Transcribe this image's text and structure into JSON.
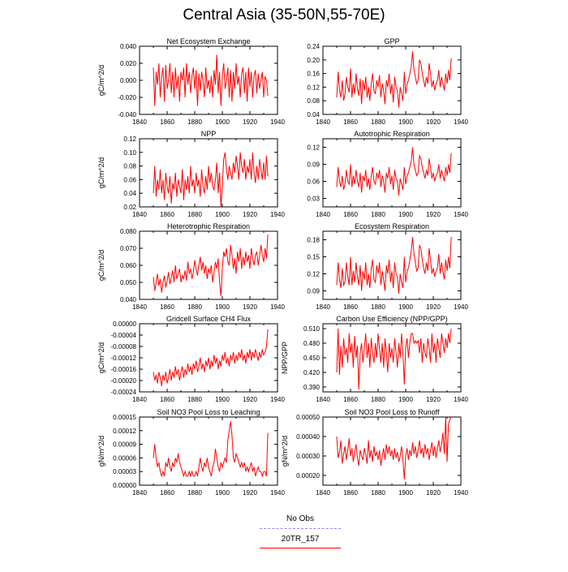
{
  "title": "Central Asia (35-50N,55-70E)",
  "line_color": "#ff0000",
  "legend": [
    {
      "label": "No Obs",
      "color": "#8888ff",
      "dash": true
    },
    {
      "label": "20TR_157",
      "color": "#ff0000",
      "dash": false
    }
  ],
  "chart_data": [
    {
      "type": "line",
      "title": "Net Ecosystem Exchange",
      "xlabel": "",
      "ylabel": "gC/m^2/d",
      "xlim": [
        1840,
        1940
      ],
      "xticks": [
        1840,
        1860,
        1880,
        1900,
        1920,
        1940
      ],
      "ylim": [
        -0.04,
        0.04
      ],
      "yticks": [
        -0.04,
        -0.02,
        0.0,
        0.02,
        0.04
      ],
      "yticklabels": [
        "-0.040",
        "-0.020",
        "0.000",
        "0.020",
        "0.040"
      ],
      "x_start": 1850,
      "x_step": 1,
      "values": [
        0.015,
        -0.03,
        0.01,
        -0.005,
        0.02,
        -0.02,
        0.005,
        0.015,
        -0.025,
        0.018,
        -0.01,
        0.0,
        0.02,
        -0.015,
        0.01,
        -0.02,
        0.015,
        -0.01,
        0.005,
        -0.025,
        0.01,
        0.0,
        0.015,
        -0.02,
        0.02,
        -0.005,
        0.01,
        -0.015,
        0.005,
        0.015,
        -0.01,
        0.012,
        -0.03,
        0.008,
        -0.012,
        0.01,
        0.0,
        -0.02,
        0.015,
        -0.01,
        0.0,
        -0.015,
        0.005,
        -0.02,
        0.012,
        -0.005,
        0.03,
        -0.015,
        0.01,
        -0.03,
        0.005,
        0.02,
        -0.01,
        0.0,
        0.015,
        -0.02,
        0.012,
        -0.025,
        0.01,
        -0.01,
        0.02,
        -0.005,
        0.005,
        -0.02,
        0.008,
        0.015,
        -0.015,
        0.01,
        -0.025,
        0.015,
        -0.008,
        0.01,
        -0.02,
        0.005,
        0.012,
        -0.015,
        0.008,
        -0.01,
        0.0,
        0.01,
        -0.02,
        0.005,
        0.0,
        -0.018
      ]
    },
    {
      "type": "line",
      "title": "GPP",
      "xlabel": "",
      "ylabel": "",
      "xlim": [
        1840,
        1940
      ],
      "xticks": [
        1840,
        1860,
        1880,
        1900,
        1920,
        1940
      ],
      "ylim": [
        0.04,
        0.24
      ],
      "yticks": [
        0.04,
        0.08,
        0.12,
        0.16,
        0.2,
        0.24
      ],
      "yticklabels": [
        "0.04",
        "0.08",
        "0.12",
        "0.16",
        "0.20",
        "0.24"
      ],
      "x_start": 1850,
      "x_step": 1,
      "values": [
        0.09,
        0.165,
        0.11,
        0.09,
        0.14,
        0.08,
        0.1,
        0.15,
        0.12,
        0.105,
        0.175,
        0.09,
        0.13,
        0.1,
        0.16,
        0.115,
        0.095,
        0.145,
        0.07,
        0.14,
        0.11,
        0.15,
        0.09,
        0.12,
        0.08,
        0.13,
        0.16,
        0.11,
        0.1,
        0.14,
        0.12,
        0.155,
        0.09,
        0.13,
        0.11,
        0.07,
        0.14,
        0.12,
        0.16,
        0.1,
        0.13,
        0.075,
        0.15,
        0.12,
        0.11,
        0.06,
        0.12,
        0.1,
        0.08,
        0.165,
        0.1,
        0.13,
        0.14,
        0.16,
        0.18,
        0.225,
        0.17,
        0.15,
        0.13,
        0.14,
        0.2,
        0.19,
        0.16,
        0.14,
        0.12,
        0.15,
        0.13,
        0.19,
        0.16,
        0.12,
        0.14,
        0.11,
        0.13,
        0.14,
        0.17,
        0.12,
        0.15,
        0.13,
        0.11,
        0.16,
        0.13,
        0.17,
        0.14,
        0.205
      ]
    },
    {
      "type": "line",
      "title": "NPP",
      "xlabel": "",
      "ylabel": "gC/m^2/d",
      "xlim": [
        1840,
        1940
      ],
      "xticks": [
        1840,
        1860,
        1880,
        1900,
        1920,
        1940
      ],
      "ylim": [
        0.02,
        0.12
      ],
      "yticks": [
        0.02,
        0.04,
        0.06,
        0.08,
        0.1,
        0.12
      ],
      "yticklabels": [
        "0.02",
        "0.04",
        "0.06",
        "0.08",
        "0.10",
        "0.12"
      ],
      "x_start": 1850,
      "x_step": 1,
      "values": [
        0.04,
        0.08,
        0.035,
        0.06,
        0.045,
        0.075,
        0.04,
        0.06,
        0.03,
        0.07,
        0.05,
        0.04,
        0.065,
        0.025,
        0.055,
        0.045,
        0.07,
        0.035,
        0.06,
        0.05,
        0.04,
        0.075,
        0.03,
        0.06,
        0.045,
        0.065,
        0.04,
        0.08,
        0.05,
        0.06,
        0.04,
        0.07,
        0.05,
        0.06,
        0.035,
        0.075,
        0.05,
        0.04,
        0.065,
        0.045,
        0.08,
        0.055,
        0.07,
        0.05,
        0.045,
        0.06,
        0.085,
        0.04,
        0.07,
        0.02,
        0.05,
        0.09,
        0.1,
        0.075,
        0.06,
        0.08,
        0.07,
        0.06,
        0.085,
        0.07,
        0.095,
        0.08,
        0.06,
        0.1,
        0.08,
        0.07,
        0.09,
        0.06,
        0.08,
        0.07,
        0.09,
        0.06,
        0.1,
        0.07,
        0.055,
        0.08,
        0.06,
        0.09,
        0.075,
        0.06,
        0.085,
        0.06,
        0.095,
        0.065
      ]
    },
    {
      "type": "line",
      "title": "Autotrophic Respiration",
      "xlabel": "",
      "ylabel": "",
      "xlim": [
        1840,
        1940
      ],
      "xticks": [
        1840,
        1860,
        1880,
        1900,
        1920,
        1940
      ],
      "ylim": [
        0.015,
        0.135
      ],
      "yticks": [
        0.03,
        0.06,
        0.09,
        0.12
      ],
      "yticklabels": [
        "0.03",
        "0.06",
        "0.09",
        "0.12"
      ],
      "x_start": 1850,
      "x_step": 1,
      "values": [
        0.05,
        0.085,
        0.06,
        0.05,
        0.07,
        0.045,
        0.055,
        0.08,
        0.06,
        0.055,
        0.09,
        0.05,
        0.07,
        0.055,
        0.08,
        0.06,
        0.05,
        0.075,
        0.04,
        0.07,
        0.06,
        0.08,
        0.05,
        0.065,
        0.045,
        0.07,
        0.085,
        0.06,
        0.055,
        0.075,
        0.065,
        0.08,
        0.05,
        0.07,
        0.06,
        0.04,
        0.075,
        0.065,
        0.085,
        0.055,
        0.07,
        0.045,
        0.08,
        0.065,
        0.06,
        0.035,
        0.065,
        0.055,
        0.045,
        0.085,
        0.055,
        0.07,
        0.075,
        0.085,
        0.095,
        0.12,
        0.09,
        0.08,
        0.07,
        0.075,
        0.105,
        0.1,
        0.085,
        0.075,
        0.065,
        0.08,
        0.07,
        0.1,
        0.085,
        0.065,
        0.075,
        0.06,
        0.07,
        0.075,
        0.09,
        0.065,
        0.08,
        0.07,
        0.06,
        0.085,
        0.07,
        0.09,
        0.075,
        0.11
      ]
    },
    {
      "type": "line",
      "title": "Heterotrophic Respiration",
      "xlabel": "",
      "ylabel": "gC/m^2/d",
      "xlim": [
        1840,
        1940
      ],
      "xticks": [
        1840,
        1860,
        1880,
        1900,
        1920,
        1940
      ],
      "ylim": [
        0.04,
        0.08
      ],
      "yticks": [
        0.04,
        0.05,
        0.06,
        0.07,
        0.08
      ],
      "yticklabels": [
        "0.040",
        "0.050",
        "0.060",
        "0.070",
        "0.080"
      ],
      "x_start": 1850,
      "x_step": 1,
      "values": [
        0.053,
        0.045,
        0.05,
        0.055,
        0.048,
        0.052,
        0.044,
        0.05,
        0.054,
        0.047,
        0.051,
        0.056,
        0.049,
        0.053,
        0.057,
        0.05,
        0.06,
        0.052,
        0.055,
        0.058,
        0.05,
        0.054,
        0.052,
        0.057,
        0.051,
        0.062,
        0.055,
        0.058,
        0.052,
        0.056,
        0.063,
        0.058,
        0.054,
        0.06,
        0.065,
        0.057,
        0.062,
        0.055,
        0.06,
        0.052,
        0.058,
        0.055,
        0.06,
        0.05,
        0.056,
        0.062,
        0.058,
        0.064,
        0.05,
        0.042,
        0.058,
        0.068,
        0.065,
        0.07,
        0.062,
        0.06,
        0.072,
        0.066,
        0.058,
        0.064,
        0.055,
        0.068,
        0.062,
        0.07,
        0.058,
        0.065,
        0.06,
        0.068,
        0.062,
        0.066,
        0.058,
        0.07,
        0.064,
        0.06,
        0.066,
        0.068,
        0.06,
        0.065,
        0.072,
        0.066,
        0.062,
        0.07,
        0.064,
        0.078
      ]
    },
    {
      "type": "line",
      "title": "Ecosystem Respiration",
      "xlabel": "",
      "ylabel": "",
      "xlim": [
        1840,
        1940
      ],
      "xticks": [
        1840,
        1860,
        1880,
        1900,
        1920,
        1940
      ],
      "ylim": [
        0.075,
        0.195
      ],
      "yticks": [
        0.09,
        0.12,
        0.15,
        0.18
      ],
      "yticklabels": [
        "0.09",
        "0.12",
        "0.15",
        "0.18"
      ],
      "x_start": 1850,
      "x_step": 1,
      "values": [
        0.1,
        0.14,
        0.11,
        0.095,
        0.13,
        0.1,
        0.105,
        0.14,
        0.115,
        0.1,
        0.15,
        0.1,
        0.125,
        0.105,
        0.14,
        0.115,
        0.1,
        0.135,
        0.09,
        0.125,
        0.11,
        0.14,
        0.1,
        0.12,
        0.095,
        0.13,
        0.145,
        0.11,
        0.105,
        0.135,
        0.12,
        0.14,
        0.1,
        0.125,
        0.11,
        0.09,
        0.135,
        0.12,
        0.145,
        0.105,
        0.125,
        0.095,
        0.14,
        0.12,
        0.115,
        0.085,
        0.12,
        0.105,
        0.095,
        0.15,
        0.105,
        0.125,
        0.13,
        0.145,
        0.16,
        0.185,
        0.155,
        0.14,
        0.125,
        0.13,
        0.17,
        0.165,
        0.145,
        0.13,
        0.12,
        0.14,
        0.125,
        0.165,
        0.145,
        0.12,
        0.13,
        0.115,
        0.125,
        0.13,
        0.155,
        0.12,
        0.14,
        0.125,
        0.11,
        0.145,
        0.125,
        0.15,
        0.13,
        0.185
      ]
    },
    {
      "type": "line",
      "title": "Gridcell Surface CH4 Flux",
      "xlabel": "",
      "ylabel": "gC/m^2/d",
      "xlim": [
        1840,
        1940
      ],
      "xticks": [
        1840,
        1860,
        1880,
        1900,
        1920,
        1940
      ],
      "ylim": [
        -0.00024,
        0.0
      ],
      "yticks": [
        -0.00024,
        -0.0002,
        -0.00016,
        -0.00012,
        -8e-05,
        -4e-05,
        0.0
      ],
      "yticklabels": [
        "-0.00024",
        "-0.00020",
        "-0.00016",
        "-0.00012",
        "-0.00008",
        "-0.00004",
        "0.00000"
      ],
      "x_start": 1850,
      "x_step": 1,
      "values": [
        -0.00017,
        -0.0002,
        -0.00018,
        -0.00021,
        -0.00017,
        -0.00019,
        -0.00022,
        -0.00018,
        -0.0002,
        -0.00017,
        -0.00021,
        -0.00019,
        -0.00016,
        -0.0002,
        -0.00017,
        -0.00019,
        -0.00015,
        -0.00018,
        -0.00016,
        -0.0002,
        -0.00017,
        -0.00015,
        -0.00019,
        -0.00016,
        -0.00018,
        -0.00014,
        -0.00017,
        -0.00015,
        -0.00018,
        -0.00014,
        -0.00016,
        -0.00013,
        -0.00017,
        -0.00015,
        -0.00012,
        -0.00016,
        -0.00014,
        -0.00017,
        -0.00013,
        -0.00015,
        -0.00012,
        -0.00016,
        -0.00013,
        -0.00015,
        -0.00011,
        -0.00014,
        -0.00012,
        -0.00016,
        -0.00013,
        -0.00015,
        -0.00011,
        -0.00013,
        -0.0001,
        -0.00014,
        -0.00012,
        -0.00015,
        -0.00011,
        -0.00013,
        -0.0001,
        -0.00014,
        -0.00011,
        -0.00013,
        -0.0001,
        -0.00012,
        -9e-05,
        -0.00013,
        -0.00011,
        -0.00014,
        -0.0001,
        -0.00012,
        -9e-05,
        -0.00013,
        -0.0001,
        -0.00012,
        -9e-05,
        -0.00011,
        -0.00013,
        -0.0001,
        -0.00012,
        -9e-05,
        -0.00011,
        -0.0001,
        -8e-05,
        -2e-05
      ]
    },
    {
      "type": "line",
      "title": "Carbon Use Efficiency (NPP/GPP)",
      "xlabel": "",
      "ylabel": "NPP/GPP",
      "xlim": [
        1840,
        1940
      ],
      "xticks": [
        1840,
        1860,
        1880,
        1900,
        1920,
        1940
      ],
      "ylim": [
        0.38,
        0.52
      ],
      "yticks": [
        0.39,
        0.42,
        0.45,
        0.48,
        0.51
      ],
      "yticklabels": [
        "0.390",
        "0.420",
        "0.450",
        "0.480",
        "0.510"
      ],
      "x_start": 1850,
      "x_step": 1,
      "values": [
        0.42,
        0.51,
        0.415,
        0.475,
        0.43,
        0.49,
        0.455,
        0.47,
        0.44,
        0.5,
        0.46,
        0.48,
        0.43,
        0.495,
        0.45,
        0.475,
        0.385,
        0.46,
        0.48,
        0.44,
        0.47,
        0.5,
        0.45,
        0.48,
        0.43,
        0.49,
        0.46,
        0.44,
        0.48,
        0.45,
        0.5,
        0.47,
        0.44,
        0.48,
        0.43,
        0.49,
        0.46,
        0.42,
        0.48,
        0.45,
        0.47,
        0.44,
        0.49,
        0.46,
        0.43,
        0.48,
        0.45,
        0.5,
        0.46,
        0.395,
        0.47,
        0.49,
        0.45,
        0.48,
        0.5,
        0.5,
        0.48,
        0.485,
        0.48,
        0.485,
        0.46,
        0.49,
        0.44,
        0.48,
        0.46,
        0.45,
        0.49,
        0.47,
        0.44,
        0.5,
        0.46,
        0.48,
        0.44,
        0.49,
        0.47,
        0.45,
        0.5,
        0.48,
        0.46,
        0.49,
        0.47,
        0.5,
        0.48,
        0.51
      ]
    },
    {
      "type": "line",
      "title": "Soil NO3 Pool Loss to Leaching",
      "xlabel": "",
      "ylabel": "gN/m^2/d",
      "xlim": [
        1840,
        1940
      ],
      "xticks": [
        1840,
        1860,
        1880,
        1900,
        1920,
        1940
      ],
      "ylim": [
        0.0,
        0.00015
      ],
      "yticks": [
        0.0,
        3e-05,
        6e-05,
        9e-05,
        0.00012,
        0.00015
      ],
      "yticklabels": [
        "0.00000",
        "0.00003",
        "0.00006",
        "0.00009",
        "0.00012",
        "0.00015"
      ],
      "x_start": 1850,
      "x_step": 1,
      "values": [
        6e-05,
        9e-05,
        6e-05,
        4e-05,
        5e-05,
        3e-05,
        2e-05,
        3e-05,
        2e-05,
        5e-05,
        4e-05,
        6e-05,
        4e-05,
        3e-05,
        5e-05,
        4e-05,
        6e-05,
        5e-05,
        7e-05,
        5e-05,
        4e-05,
        3e-05,
        2e-05,
        3e-05,
        2e-05,
        2e-05,
        3e-05,
        2e-05,
        3e-05,
        2e-05,
        2e-05,
        3e-05,
        2e-05,
        4e-05,
        6e-05,
        4e-05,
        3e-05,
        5e-05,
        4e-05,
        6e-05,
        4e-05,
        3e-05,
        2e-05,
        4e-05,
        5e-05,
        8e-05,
        6e-05,
        4e-05,
        3e-05,
        5e-05,
        4e-05,
        5e-05,
        6e-05,
        5e-05,
        0.0001,
        0.00012,
        0.00014,
        0.00011,
        6e-05,
        5e-05,
        7e-05,
        6e-05,
        5e-05,
        4e-05,
        5e-05,
        4e-05,
        5e-05,
        3e-05,
        4e-05,
        3e-05,
        4e-05,
        5e-05,
        3e-05,
        4e-05,
        2e-05,
        3e-05,
        4e-05,
        3e-05,
        3e-05,
        2e-05,
        3e-05,
        3e-05,
        2e-05,
        0.000115
      ]
    },
    {
      "type": "line",
      "title": "Soil NO3 Pool Loss to Runoff",
      "xlabel": "",
      "ylabel": "gN/m^2/d",
      "xlim": [
        1840,
        1940
      ],
      "xticks": [
        1840,
        1860,
        1880,
        1900,
        1920,
        1940
      ],
      "ylim": [
        0.00015,
        0.0005
      ],
      "yticks": [
        0.0002,
        0.0003,
        0.0004,
        0.0005
      ],
      "yticklabels": [
        "0.00020",
        "0.00030",
        "0.00040",
        "0.00050"
      ],
      "x_start": 1850,
      "x_step": 1,
      "values": [
        0.0004,
        0.00029,
        0.00032,
        0.00038,
        0.00026,
        0.00031,
        0.00035,
        0.00028,
        0.00033,
        0.00039,
        0.0003,
        0.00034,
        0.00027,
        0.00032,
        0.00036,
        0.00029,
        0.00025,
        0.00033,
        0.0003,
        0.00028,
        0.00034,
        0.00031,
        0.00026,
        0.00038,
        0.00029,
        0.00033,
        0.00027,
        0.00035,
        0.0003,
        0.00032,
        0.00028,
        0.00033,
        0.00025,
        0.0003,
        0.00034,
        0.00028,
        0.00036,
        0.00031,
        0.00035,
        0.0003,
        0.00033,
        0.00028,
        0.00034,
        0.00029,
        0.00032,
        0.00027,
        0.0003,
        0.00035,
        0.00028,
        0.00018,
        0.0003,
        0.00034,
        0.00028,
        0.00033,
        0.0003,
        0.00037,
        0.00031,
        0.00035,
        0.00029,
        0.00033,
        0.00038,
        0.00031,
        0.00034,
        0.00029,
        0.00036,
        0.00031,
        0.00034,
        0.00028,
        0.00033,
        0.00037,
        0.0003,
        0.00035,
        0.00029,
        0.00034,
        0.00038,
        0.00032,
        0.00036,
        0.00042,
        0.00031,
        0.0005,
        0.00027,
        0.00046,
        0.00049,
        0.0005
      ]
    }
  ]
}
